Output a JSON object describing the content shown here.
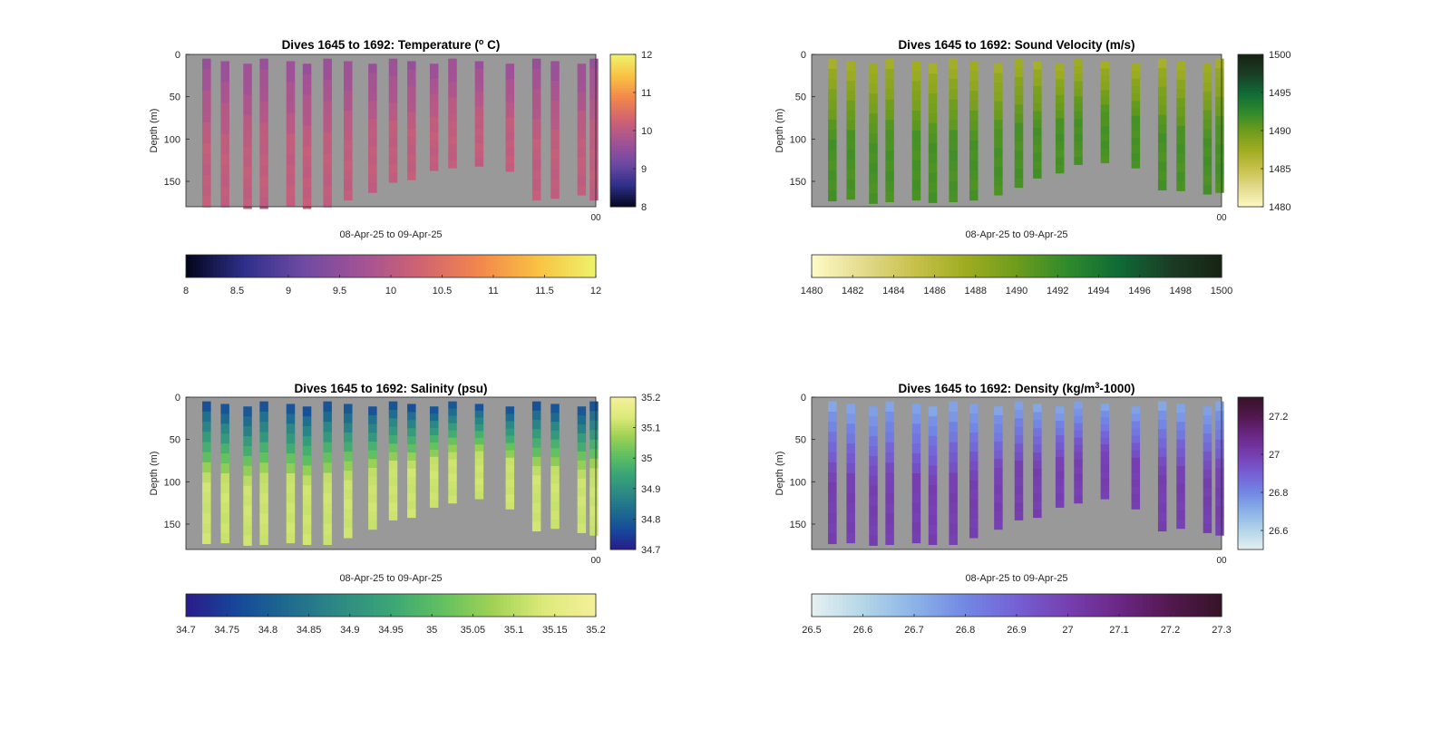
{
  "figure": {
    "background": "#ffffff",
    "plot_background": "#999999",
    "date_range_label": "08-Apr-25 to 09-Apr-25",
    "corner_tick_label": "00"
  },
  "chart_data": [
    {
      "type": "heatmap",
      "title": "Dives 1645 to 1692: Temperature (°C)",
      "title_parts": {
        "prefix": "Dives 1645 to 1692: Temperature (",
        "sup": "o",
        "suffix": " C)"
      },
      "variable": "Temperature",
      "units": "°C",
      "ylabel": "Depth (m)",
      "xlabel": "08-Apr-25 to 09-Apr-25",
      "y_reversed": true,
      "ylim": [
        0,
        180
      ],
      "y_ticks": [
        0,
        50,
        100,
        150
      ],
      "clim": [
        8,
        12
      ],
      "colormap": "thermal",
      "colormap_stops": [
        "#03051a",
        "#2e2f8a",
        "#6e4aa3",
        "#a25295",
        "#d06372",
        "#f2864c",
        "#f9c143",
        "#eef26a"
      ],
      "side_colorbar_ticks": [
        "8",
        "9",
        "10",
        "11",
        "12"
      ],
      "bottom_colorbar_ticks": [
        "8",
        "8.5",
        "9",
        "9.5",
        "10",
        "10.5",
        "11",
        "11.5",
        "12"
      ],
      "profiles_max_depth": [
        180,
        180,
        182,
        182,
        179,
        182,
        180,
        172,
        163,
        151,
        148,
        137,
        134,
        132,
        138,
        172,
        170,
        166,
        172
      ],
      "surface_value": 9.6,
      "deep_value": 10.1
    },
    {
      "type": "heatmap",
      "title": "Dives 1645 to 1692: Sound Velocity (m/s)",
      "variable": "Sound Velocity",
      "units": "m/s",
      "ylabel": "Depth (m)",
      "xlabel": "08-Apr-25 to 09-Apr-25",
      "y_reversed": true,
      "ylim": [
        0,
        180
      ],
      "y_ticks": [
        0,
        50,
        100,
        150
      ],
      "clim": [
        1480,
        1500
      ],
      "colormap": "speed",
      "colormap_stops": [
        "#fdfac6",
        "#e4db8e",
        "#c7c14b",
        "#9fac21",
        "#6e9c1c",
        "#2f8a2c",
        "#0f6a36",
        "#1b3d25",
        "#172313"
      ],
      "side_colorbar_ticks": [
        "1480",
        "1485",
        "1490",
        "1495",
        "1500"
      ],
      "bottom_colorbar_ticks": [
        "1480",
        "1482",
        "1484",
        "1486",
        "1488",
        "1490",
        "1492",
        "1494",
        "1496",
        "1498",
        "1500"
      ],
      "profiles_max_depth": [
        173,
        171,
        176,
        174,
        172,
        175,
        174,
        172,
        166,
        157,
        146,
        140,
        130,
        128,
        134,
        160,
        161,
        165,
        163
      ],
      "surface_value": 1487.0,
      "deep_value": 1491.5
    },
    {
      "type": "heatmap",
      "title": "Dives 1645 to 1692: Salinity (psu)",
      "variable": "Salinity",
      "units": "psu",
      "ylabel": "Depth (m)",
      "xlabel": "08-Apr-25 to 09-Apr-25",
      "y_reversed": true,
      "ylim": [
        0,
        180
      ],
      "y_ticks": [
        0,
        50,
        100,
        150
      ],
      "clim": [
        34.7,
        35.2
      ],
      "colormap": "haline",
      "colormap_stops": [
        "#2a1a8a",
        "#16489a",
        "#1e6b8f",
        "#2d8a84",
        "#3aa676",
        "#62c060",
        "#a1d255",
        "#ddea7a",
        "#f5f09a"
      ],
      "side_colorbar_ticks": [
        "34.7",
        "34.8",
        "34.9",
        "35",
        "35.1",
        "35.2"
      ],
      "bottom_colorbar_ticks": [
        "34.7",
        "34.75",
        "34.8",
        "34.85",
        "34.9",
        "34.95",
        "35",
        "35.05",
        "35.1",
        "35.15",
        "35.2"
      ],
      "profiles_max_depth": [
        173,
        172,
        175,
        174,
        172,
        174,
        174,
        166,
        156,
        145,
        142,
        130,
        125,
        120,
        132,
        158,
        155,
        160,
        163
      ],
      "surface_value": 34.76,
      "deep_value": 35.12
    },
    {
      "type": "heatmap",
      "title": "Dives 1645 to 1692: Density (kg/m³-1000)",
      "title_parts": {
        "prefix": "Dives 1645 to 1692: Density (kg/m",
        "sup": "3",
        "suffix": "-1000)"
      },
      "variable": "Density",
      "units": "kg/m³-1000",
      "ylabel": "Depth (m)",
      "xlabel": "08-Apr-25 to 09-Apr-25",
      "y_reversed": true,
      "ylim": [
        0,
        180
      ],
      "y_ticks": [
        0,
        50,
        100,
        150
      ],
      "clim": [
        26.5,
        27.3
      ],
      "colormap": "dense",
      "colormap_stops": [
        "#e6f1f1",
        "#b4d6e8",
        "#8cb3e7",
        "#7288e4",
        "#7560d4",
        "#763fb0",
        "#6b2785",
        "#52184f",
        "#361326"
      ],
      "side_colorbar_ticks": [
        "26.6",
        "26.8",
        "27",
        "27.2"
      ],
      "bottom_colorbar_ticks": [
        "26.5",
        "26.6",
        "26.7",
        "26.8",
        "26.9",
        "27",
        "27.1",
        "27.2",
        "27.3"
      ],
      "profiles_max_depth": [
        173,
        172,
        175,
        174,
        172,
        174,
        174,
        166,
        156,
        145,
        142,
        130,
        125,
        120,
        132,
        158,
        155,
        160,
        163
      ],
      "surface_value": 26.72,
      "deep_value": 27.0
    }
  ]
}
